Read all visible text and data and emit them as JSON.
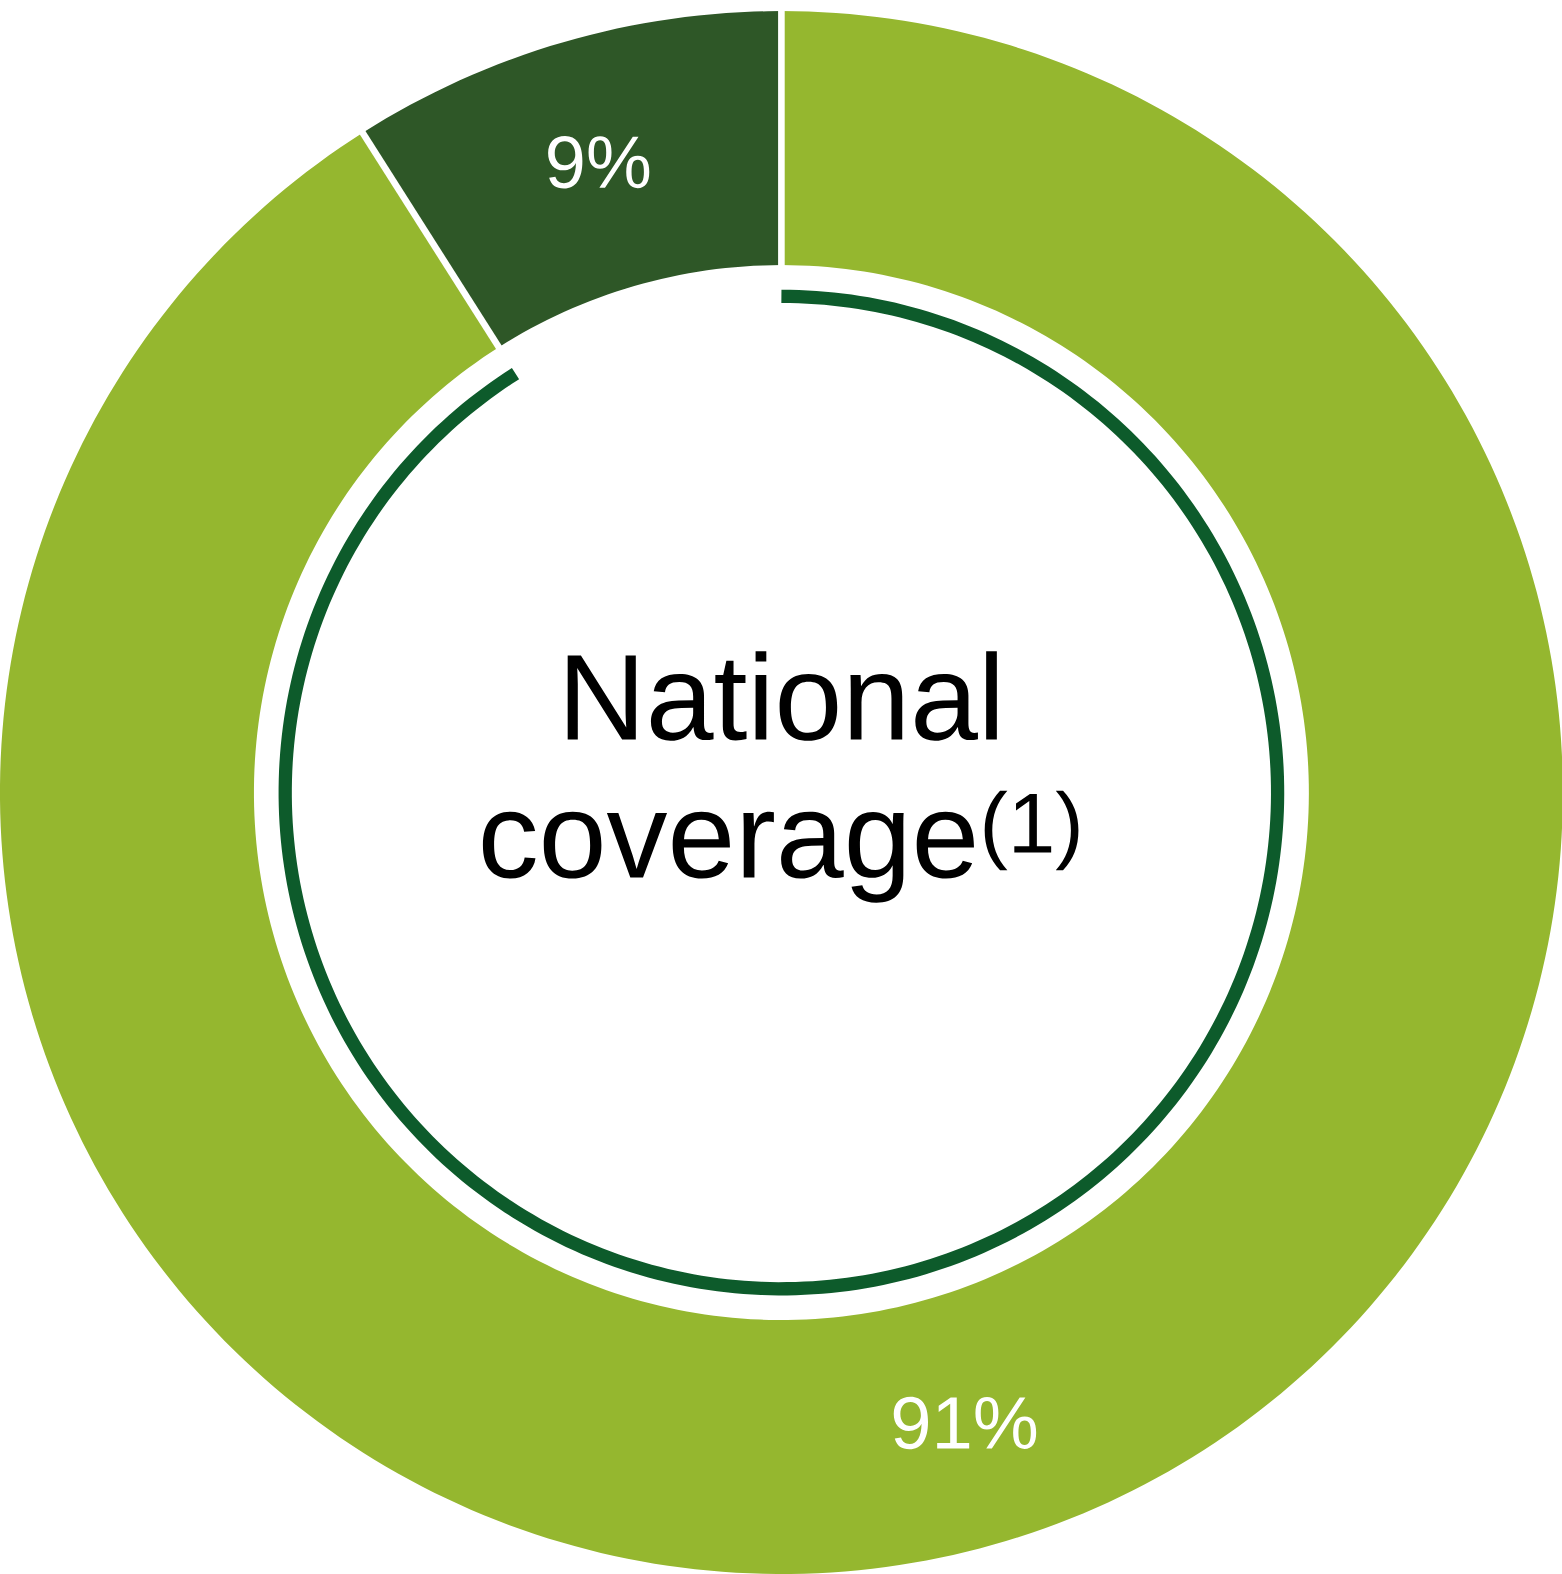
{
  "chart_data": {
    "type": "donut",
    "title": "National coverage$^{(1)}$",
    "categories": [
      null,
      null
    ],
    "values": [
      91,
      9
    ],
    "colors": [
      "#95b72f",
      "#2e5727"
    ],
    "value_labels": [
      "91%",
      "9%"
    ]
  }
}
